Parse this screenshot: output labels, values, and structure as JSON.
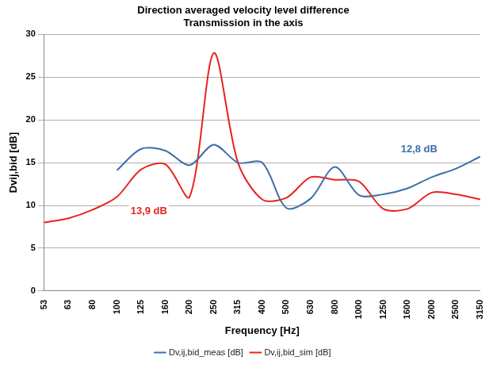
{
  "chart_data": {
    "type": "line",
    "title": [
      "Direction averaged velocity level difference",
      "Transmission in the axis"
    ],
    "x_label": "Frequency [Hz]",
    "y_label": "Dvij,bid [dB]",
    "categories": [
      "53",
      "63",
      "80",
      "100",
      "125",
      "160",
      "200",
      "250",
      "315",
      "400",
      "500",
      "630",
      "800",
      "1000",
      "1250",
      "1600",
      "2000",
      "2500",
      "3150"
    ],
    "series": [
      {
        "name": "Dv,ij,bid_meas [dB]",
        "color": "#3d6fa8",
        "line_style": "smooth",
        "values": [
          null,
          null,
          null,
          14.1,
          16.6,
          16.4,
          14.7,
          17.1,
          15.0,
          15.0,
          9.7,
          10.8,
          14.5,
          11.2,
          11.3,
          12.0,
          13.3,
          14.3,
          15.7
        ]
      },
      {
        "name": "Dv,ij,bid_sim [dB]",
        "color": "#e8231c",
        "line_style": "smooth",
        "values": [
          8.0,
          8.5,
          9.5,
          11.0,
          14.2,
          14.8,
          11.0,
          27.8,
          15.0,
          10.7,
          10.9,
          13.3,
          13.0,
          12.8,
          9.6,
          9.6,
          11.5,
          11.3,
          10.7
        ]
      }
    ],
    "annotations": [
      {
        "text": "13,9 dB",
        "color": "#e8231c"
      },
      {
        "text": "12,8 dB",
        "color": "#3d6fa8"
      }
    ],
    "ylim": [
      0,
      30
    ],
    "yticks": [
      0,
      5,
      10,
      15,
      20,
      25,
      30
    ],
    "grid": true,
    "legend": "bottom"
  }
}
